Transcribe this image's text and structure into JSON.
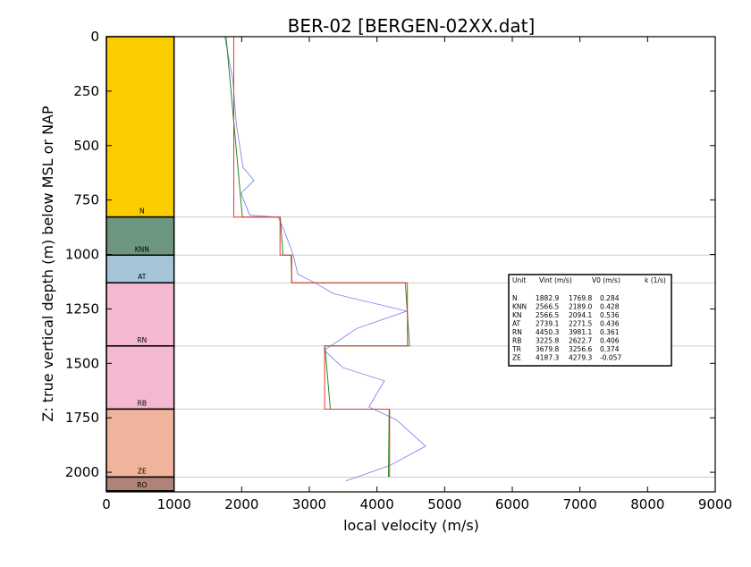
{
  "chart_data": {
    "type": "line",
    "title": "BER-02 [BERGEN-02XX.dat]",
    "xlabel": "local velocity (m/s)",
    "ylabel": "Z: true vertical depth (m) below MSL or NAP",
    "xlim": [
      0,
      9000
    ],
    "ylim": [
      2090,
      0
    ],
    "y_inverted": true,
    "grid": false,
    "x_ticks": [
      0,
      1000,
      2000,
      3000,
      4000,
      5000,
      6000,
      7000,
      8000,
      9000
    ],
    "y_ticks": [
      0,
      250,
      500,
      750,
      1000,
      1250,
      1500,
      1750,
      2000
    ],
    "units": [
      {
        "name": "N",
        "top": 0,
        "base": 828,
        "color": "#fbcc00"
      },
      {
        "name": "KNN",
        "top": 828,
        "base": 1003,
        "color": "#6d9680"
      },
      {
        "name": "AT",
        "top": 1003,
        "base": 1130,
        "color": "#a7c5d8"
      },
      {
        "name": "RN",
        "top": 1130,
        "base": 1420,
        "color": "#f4b8d0"
      },
      {
        "name": "RB",
        "top": 1420,
        "base": 1710,
        "color": "#f4b8d0"
      },
      {
        "name": "ZE",
        "top": 1710,
        "base": 2022,
        "color": "#f0b49c"
      },
      {
        "name": "RO",
        "top": 2022,
        "base": 2085,
        "color": "#b08378"
      }
    ],
    "unit_column_x": [
      0,
      1000
    ],
    "series": [
      {
        "color": "#7777ee",
        "points": [
          [
            1750,
            0
          ],
          [
            1870,
            200
          ],
          [
            1920,
            400
          ],
          [
            2020,
            600
          ],
          [
            2180,
            660
          ],
          [
            1990,
            720
          ],
          [
            2120,
            820
          ],
          [
            2540,
            828
          ],
          [
            2640,
            900
          ],
          [
            2760,
            1000
          ],
          [
            2830,
            1090
          ],
          [
            3080,
            1130
          ],
          [
            3360,
            1180
          ],
          [
            4440,
            1260
          ],
          [
            3700,
            1340
          ],
          [
            3220,
            1440
          ],
          [
            3500,
            1520
          ],
          [
            4110,
            1580
          ],
          [
            3880,
            1700
          ],
          [
            4290,
            1760
          ],
          [
            4720,
            1880
          ],
          [
            4180,
            1970
          ],
          [
            3540,
            2040
          ]
        ]
      },
      {
        "color": "#228822",
        "points": [
          [
            1770,
            0
          ],
          [
            2010,
            828
          ],
          [
            2570,
            828
          ],
          [
            2610,
            1003
          ],
          [
            2730,
            1003
          ],
          [
            2740,
            1130
          ],
          [
            4420,
            1130
          ],
          [
            4480,
            1420
          ],
          [
            3230,
            1420
          ],
          [
            3310,
            1710
          ],
          [
            4180,
            1710
          ],
          [
            4170,
            2022
          ]
        ]
      },
      {
        "color": "#ee3333",
        "points": [
          [
            1883,
            0
          ],
          [
            1883,
            828
          ],
          [
            2567,
            828
          ],
          [
            2567,
            1003
          ],
          [
            2739,
            1003
          ],
          [
            2739,
            1130
          ],
          [
            4450,
            1130
          ],
          [
            4450,
            1420
          ],
          [
            3226,
            1420
          ],
          [
            3226,
            1710
          ],
          [
            4187,
            1710
          ],
          [
            4187,
            2022
          ]
        ]
      }
    ],
    "hlines": [
      828,
      1003,
      1130,
      1420,
      1710,
      2022
    ],
    "table": {
      "header": [
        "Unit",
        "Vint (m/s)",
        "V0 (m/s)",
        "k (1/s)"
      ],
      "rows": [
        [
          "N",
          "1882.9",
          "1769.8",
          "0.284"
        ],
        [
          "KNN",
          "2566.5",
          "2189.0",
          "0.428"
        ],
        [
          "KN",
          "2566.5",
          "2094.1",
          "0.536"
        ],
        [
          "AT",
          "2739.1",
          "2271.5",
          "0.436"
        ],
        [
          "RN",
          "4450.3",
          "3981.1",
          "0.361"
        ],
        [
          "RB",
          "3225.8",
          "2622.7",
          "0.406"
        ],
        [
          "TR",
          "3679.8",
          "3256.6",
          "0.374"
        ],
        [
          "ZE",
          "4187.3",
          "4279.3",
          "-0.057"
        ]
      ]
    }
  }
}
